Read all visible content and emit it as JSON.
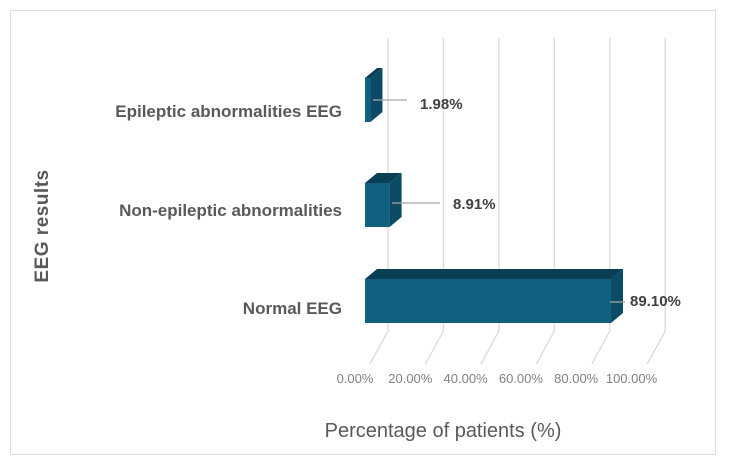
{
  "chart_data": {
    "type": "bar",
    "orientation": "horizontal",
    "effect": "3d",
    "categories": [
      "Epileptic abnormalities EEG",
      "Non-epileptic abnormalities",
      "Normal EEG"
    ],
    "values": [
      1.98,
      8.91,
      89.1
    ],
    "data_labels": [
      "1.98%",
      "8.91%",
      "89.10%"
    ],
    "xlabel": "Percentage of patients (%)",
    "ylabel": "EEG results",
    "x_ticks": [
      "0.00%",
      "20.00%",
      "40.00%",
      "60.00%",
      "80.00%",
      "100.00%"
    ],
    "xlim": [
      0,
      100
    ],
    "grid": true,
    "legend": false
  },
  "colors": {
    "background": "#ffffff",
    "frame": "#dcdcdc",
    "gridline": "#d9d9d9",
    "leader_line": "#a6a6a6",
    "bar_front": "#11607f",
    "bar_top": "#093e54",
    "bar_side": "#0b4b66",
    "axis_title_text": "#595959",
    "category_text": "#595959",
    "tick_text": "#808080",
    "data_label_text": "#404040"
  }
}
